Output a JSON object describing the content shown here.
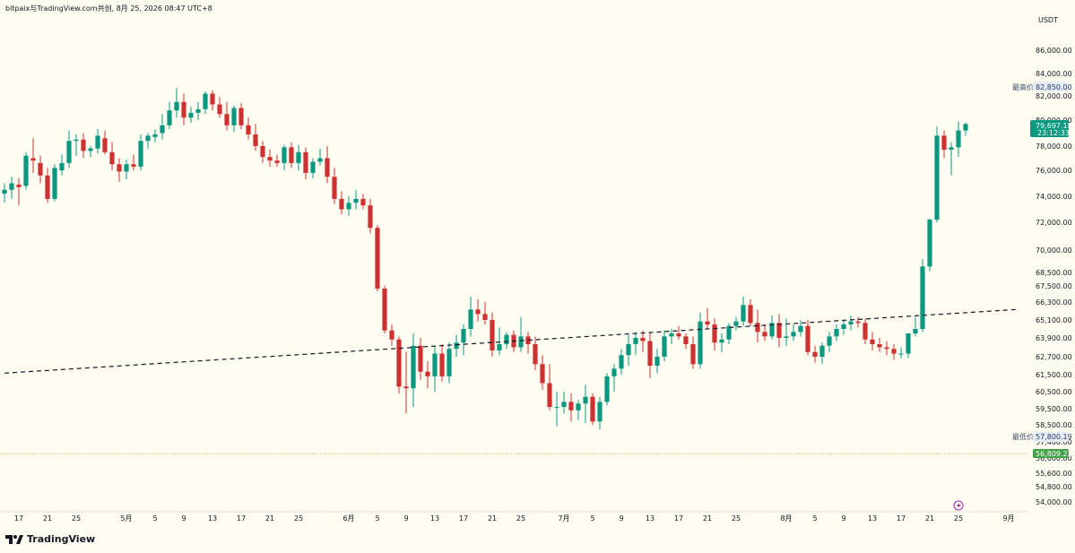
{
  "header": {
    "caption": "bitpaix与TradingView.com共创, 8月 25, 2026 08:47 UTC+8"
  },
  "price_axis": {
    "currency": "USDT"
  },
  "price_labels": {
    "high_label": "最高价",
    "high_value": "82,850.00",
    "low_label": "最低价",
    "low_value": "57,800.19",
    "current_price": "79,697.18",
    "countdown": "23:12:33",
    "alert_line": "56,809.22"
  },
  "logo": {
    "text": "TradingView"
  },
  "colors": {
    "up": "#089981",
    "down": "#d03030",
    "bg": "#fffdf2",
    "alert": "#43a047",
    "high_low_bg": "#e6ecf6"
  },
  "chart_data": {
    "type": "candlestick",
    "y_ticks": [
      {
        "v": 86000,
        "label": "86,000.00"
      },
      {
        "v": 84000,
        "label": "84,000.00"
      },
      {
        "v": 82000,
        "label": "82,000.00"
      },
      {
        "v": 80000,
        "label": "80,000.00"
      },
      {
        "v": 78000,
        "label": "78,000.00"
      },
      {
        "v": 76000,
        "label": "76,000.00"
      },
      {
        "v": 74000,
        "label": "74,000.00"
      },
      {
        "v": 72000,
        "label": "72,000.00"
      },
      {
        "v": 70000,
        "label": "70,000.00"
      },
      {
        "v": 68500,
        "label": "68,500.00"
      },
      {
        "v": 67500,
        "label": "67,500.00"
      },
      {
        "v": 66300,
        "label": "66,300.00"
      },
      {
        "v": 65100,
        "label": "65,100.00"
      },
      {
        "v": 63900,
        "label": "63,900.00"
      },
      {
        "v": 62700,
        "label": "62,700.00"
      },
      {
        "v": 61500,
        "label": "61,500.00"
      },
      {
        "v": 60500,
        "label": "60,500.00"
      },
      {
        "v": 59500,
        "label": "59,500.00"
      },
      {
        "v": 58500,
        "label": "58,500.00"
      },
      {
        "v": 57400,
        "label": "57,400.00"
      },
      {
        "v": 56600,
        "label": "56,600.00"
      },
      {
        "v": 55600,
        "label": "55,600.00"
      },
      {
        "v": 54800,
        "label": "54,800.00"
      },
      {
        "v": 54000,
        "label": "54,000.00"
      }
    ],
    "x_ticks": [
      "17",
      "21",
      "25",
      "5月",
      "5",
      "9",
      "13",
      "17",
      "21",
      "25",
      "6月",
      "5",
      "9",
      "13",
      "17",
      "21",
      "25",
      "7月",
      "5",
      "9",
      "13",
      "17",
      "21",
      "25",
      "8月",
      "5",
      "9",
      "13",
      "17",
      "21",
      "25",
      "9月"
    ],
    "x_tick_days": [
      -15,
      -11,
      -7,
      0,
      4,
      8,
      12,
      16,
      20,
      24,
      31,
      35,
      39,
      43,
      47,
      51,
      55,
      61,
      65,
      69,
      73,
      77,
      81,
      85,
      92,
      96,
      100,
      104,
      108,
      112,
      116,
      123
    ],
    "trendline": [
      {
        "day": -17,
        "price": 61600
      },
      {
        "day": 124,
        "price": 65800
      }
    ],
    "candles": [
      {
        "d": -17,
        "o": 74200,
        "h": 75000,
        "l": 73500,
        "c": 74500
      },
      {
        "d": -16,
        "o": 74500,
        "h": 75500,
        "l": 73800,
        "c": 75000
      },
      {
        "d": -15,
        "o": 74900,
        "h": 75400,
        "l": 73300,
        "c": 74700
      },
      {
        "d": -14,
        "o": 74800,
        "h": 77500,
        "l": 74500,
        "c": 77200
      },
      {
        "d": -13,
        "o": 77000,
        "h": 78600,
        "l": 75800,
        "c": 76800
      },
      {
        "d": -12,
        "o": 76600,
        "h": 77200,
        "l": 75000,
        "c": 75600
      },
      {
        "d": -11,
        "o": 75600,
        "h": 76200,
        "l": 73500,
        "c": 73800
      },
      {
        "d": -10,
        "o": 73800,
        "h": 76500,
        "l": 73600,
        "c": 76200
      },
      {
        "d": -9,
        "o": 76000,
        "h": 77300,
        "l": 75600,
        "c": 76600
      },
      {
        "d": -8,
        "o": 76600,
        "h": 79200,
        "l": 76200,
        "c": 78400
      },
      {
        "d": -7,
        "o": 78400,
        "h": 78900,
        "l": 77200,
        "c": 78500
      },
      {
        "d": -6,
        "o": 78500,
        "h": 79000,
        "l": 77000,
        "c": 77600
      },
      {
        "d": -5,
        "o": 77600,
        "h": 78000,
        "l": 77100,
        "c": 77800
      },
      {
        "d": -4,
        "o": 77800,
        "h": 79300,
        "l": 77400,
        "c": 78800
      },
      {
        "d": -3,
        "o": 78600,
        "h": 79200,
        "l": 77300,
        "c": 77500
      },
      {
        "d": -2,
        "o": 77500,
        "h": 78300,
        "l": 76000,
        "c": 76500
      },
      {
        "d": -1,
        "o": 76500,
        "h": 77000,
        "l": 75100,
        "c": 75900
      },
      {
        "d": 0,
        "o": 75900,
        "h": 76900,
        "l": 75300,
        "c": 76500
      },
      {
        "d": 1,
        "o": 76500,
        "h": 77300,
        "l": 76000,
        "c": 76300
      },
      {
        "d": 2,
        "o": 76300,
        "h": 78900,
        "l": 76000,
        "c": 78400
      },
      {
        "d": 3,
        "o": 78400,
        "h": 79000,
        "l": 77800,
        "c": 78800
      },
      {
        "d": 4,
        "o": 78700,
        "h": 79300,
        "l": 78300,
        "c": 78900
      },
      {
        "d": 5,
        "o": 79000,
        "h": 80500,
        "l": 78500,
        "c": 79600
      },
      {
        "d": 6,
        "o": 79600,
        "h": 81500,
        "l": 79300,
        "c": 80800
      },
      {
        "d": 7,
        "o": 80800,
        "h": 82700,
        "l": 80200,
        "c": 81500
      },
      {
        "d": 8,
        "o": 81500,
        "h": 82200,
        "l": 79600,
        "c": 80200
      },
      {
        "d": 9,
        "o": 80200,
        "h": 81100,
        "l": 79800,
        "c": 80600
      },
      {
        "d": 10,
        "o": 80600,
        "h": 81500,
        "l": 80000,
        "c": 80900
      },
      {
        "d": 11,
        "o": 80900,
        "h": 82400,
        "l": 80500,
        "c": 82200
      },
      {
        "d": 12,
        "o": 82200,
        "h": 82500,
        "l": 80800,
        "c": 81300
      },
      {
        "d": 13,
        "o": 81300,
        "h": 81900,
        "l": 80200,
        "c": 80500
      },
      {
        "d": 14,
        "o": 80500,
        "h": 81500,
        "l": 79200,
        "c": 79600
      },
      {
        "d": 15,
        "o": 79600,
        "h": 81200,
        "l": 79100,
        "c": 81000
      },
      {
        "d": 16,
        "o": 81000,
        "h": 81400,
        "l": 79300,
        "c": 79600
      },
      {
        "d": 17,
        "o": 79600,
        "h": 80200,
        "l": 78500,
        "c": 78900
      },
      {
        "d": 18,
        "o": 78900,
        "h": 79700,
        "l": 77600,
        "c": 78000
      },
      {
        "d": 19,
        "o": 78000,
        "h": 78400,
        "l": 76600,
        "c": 77100
      },
      {
        "d": 20,
        "o": 77100,
        "h": 77700,
        "l": 76300,
        "c": 76800
      },
      {
        "d": 21,
        "o": 76800,
        "h": 77300,
        "l": 76300,
        "c": 76600
      },
      {
        "d": 22,
        "o": 76600,
        "h": 78100,
        "l": 76000,
        "c": 77900
      },
      {
        "d": 23,
        "o": 77900,
        "h": 78300,
        "l": 76200,
        "c": 76600
      },
      {
        "d": 24,
        "o": 76600,
        "h": 78100,
        "l": 76000,
        "c": 77500
      },
      {
        "d": 25,
        "o": 77500,
        "h": 77900,
        "l": 75300,
        "c": 75800
      },
      {
        "d": 26,
        "o": 75800,
        "h": 77000,
        "l": 75400,
        "c": 76700
      },
      {
        "d": 27,
        "o": 76700,
        "h": 77800,
        "l": 76400,
        "c": 77000
      },
      {
        "d": 28,
        "o": 77000,
        "h": 78000,
        "l": 75000,
        "c": 75500
      },
      {
        "d": 29,
        "o": 75500,
        "h": 76200,
        "l": 73400,
        "c": 73800
      },
      {
        "d": 30,
        "o": 73800,
        "h": 74400,
        "l": 72600,
        "c": 73000
      },
      {
        "d": 31,
        "o": 73000,
        "h": 74000,
        "l": 72500,
        "c": 73500
      },
      {
        "d": 32,
        "o": 73500,
        "h": 74500,
        "l": 73000,
        "c": 73800
      },
      {
        "d": 33,
        "o": 73800,
        "h": 74200,
        "l": 73000,
        "c": 73300
      },
      {
        "d": 34,
        "o": 73300,
        "h": 73800,
        "l": 71200,
        "c": 71600
      },
      {
        "d": 35,
        "o": 71600,
        "h": 71800,
        "l": 67100,
        "c": 67300
      },
      {
        "d": 36,
        "o": 67300,
        "h": 67500,
        "l": 64200,
        "c": 64400
      },
      {
        "d": 37,
        "o": 64400,
        "h": 64800,
        "l": 63400,
        "c": 63800
      },
      {
        "d": 38,
        "o": 63800,
        "h": 64000,
        "l": 60400,
        "c": 60800
      },
      {
        "d": 39,
        "o": 60800,
        "h": 63000,
        "l": 59200,
        "c": 60700
      },
      {
        "d": 40,
        "o": 60700,
        "h": 64200,
        "l": 59600,
        "c": 63400
      },
      {
        "d": 41,
        "o": 63400,
        "h": 63900,
        "l": 61200,
        "c": 61700
      },
      {
        "d": 42,
        "o": 61700,
        "h": 62400,
        "l": 60700,
        "c": 61400
      },
      {
        "d": 43,
        "o": 61400,
        "h": 63400,
        "l": 60500,
        "c": 62900
      },
      {
        "d": 44,
        "o": 62900,
        "h": 63500,
        "l": 61100,
        "c": 61400
      },
      {
        "d": 45,
        "o": 61400,
        "h": 63600,
        "l": 61000,
        "c": 63200
      },
      {
        "d": 46,
        "o": 63200,
        "h": 64100,
        "l": 62700,
        "c": 63600
      },
      {
        "d": 47,
        "o": 63600,
        "h": 64800,
        "l": 62800,
        "c": 64500
      },
      {
        "d": 48,
        "o": 64500,
        "h": 66700,
        "l": 64000,
        "c": 65800
      },
      {
        "d": 49,
        "o": 65800,
        "h": 66500,
        "l": 65000,
        "c": 65500
      },
      {
        "d": 50,
        "o": 65500,
        "h": 66300,
        "l": 64800,
        "c": 65100
      },
      {
        "d": 51,
        "o": 65100,
        "h": 65600,
        "l": 62700,
        "c": 63100
      },
      {
        "d": 52,
        "o": 63100,
        "h": 64600,
        "l": 62800,
        "c": 63500
      },
      {
        "d": 53,
        "o": 63500,
        "h": 64300,
        "l": 63200,
        "c": 64100
      },
      {
        "d": 54,
        "o": 64100,
        "h": 64400,
        "l": 63000,
        "c": 63300
      },
      {
        "d": 55,
        "o": 63300,
        "h": 65300,
        "l": 63000,
        "c": 64000
      },
      {
        "d": 56,
        "o": 64000,
        "h": 64300,
        "l": 62900,
        "c": 63500
      },
      {
        "d": 57,
        "o": 63500,
        "h": 64000,
        "l": 61800,
        "c": 62200
      },
      {
        "d": 58,
        "o": 62200,
        "h": 62800,
        "l": 60600,
        "c": 61000
      },
      {
        "d": 59,
        "o": 61000,
        "h": 62200,
        "l": 59400,
        "c": 59600
      },
      {
        "d": 60,
        "o": 59600,
        "h": 60500,
        "l": 58400,
        "c": 59600
      },
      {
        "d": 61,
        "o": 59600,
        "h": 60500,
        "l": 59200,
        "c": 59900
      },
      {
        "d": 62,
        "o": 59900,
        "h": 60400,
        "l": 58700,
        "c": 59400
      },
      {
        "d": 63,
        "o": 59400,
        "h": 60000,
        "l": 58800,
        "c": 59800
      },
      {
        "d": 64,
        "o": 59800,
        "h": 60900,
        "l": 58600,
        "c": 60200
      },
      {
        "d": 65,
        "o": 60200,
        "h": 60400,
        "l": 58500,
        "c": 58700
      },
      {
        "d": 66,
        "o": 58700,
        "h": 60200,
        "l": 58200,
        "c": 59900
      },
      {
        "d": 67,
        "o": 59900,
        "h": 61600,
        "l": 59700,
        "c": 61400
      },
      {
        "d": 68,
        "o": 61400,
        "h": 62200,
        "l": 60500,
        "c": 61900
      },
      {
        "d": 69,
        "o": 61900,
        "h": 63200,
        "l": 61500,
        "c": 62800
      },
      {
        "d": 70,
        "o": 62800,
        "h": 64100,
        "l": 62100,
        "c": 63500
      },
      {
        "d": 71,
        "o": 63500,
        "h": 64300,
        "l": 62800,
        "c": 63900
      },
      {
        "d": 72,
        "o": 63900,
        "h": 64400,
        "l": 63000,
        "c": 63700
      },
      {
        "d": 73,
        "o": 63700,
        "h": 64300,
        "l": 61300,
        "c": 62100
      },
      {
        "d": 74,
        "o": 62100,
        "h": 63200,
        "l": 61600,
        "c": 62700
      },
      {
        "d": 75,
        "o": 62700,
        "h": 64400,
        "l": 62400,
        "c": 64000
      },
      {
        "d": 76,
        "o": 64000,
        "h": 64500,
        "l": 63500,
        "c": 64200
      },
      {
        "d": 77,
        "o": 64200,
        "h": 64700,
        "l": 63800,
        "c": 64000
      },
      {
        "d": 78,
        "o": 64000,
        "h": 64200,
        "l": 63200,
        "c": 63500
      },
      {
        "d": 79,
        "o": 63500,
        "h": 64000,
        "l": 61900,
        "c": 62200
      },
      {
        "d": 80,
        "o": 62200,
        "h": 65600,
        "l": 61900,
        "c": 65000
      },
      {
        "d": 81,
        "o": 65000,
        "h": 65900,
        "l": 64500,
        "c": 64800
      },
      {
        "d": 82,
        "o": 64800,
        "h": 65200,
        "l": 63100,
        "c": 63600
      },
      {
        "d": 83,
        "o": 63600,
        "h": 64200,
        "l": 63000,
        "c": 63800
      },
      {
        "d": 84,
        "o": 63800,
        "h": 64900,
        "l": 63500,
        "c": 64700
      },
      {
        "d": 85,
        "o": 64700,
        "h": 65300,
        "l": 64400,
        "c": 65000
      },
      {
        "d": 86,
        "o": 65000,
        "h": 66700,
        "l": 64700,
        "c": 66100
      },
      {
        "d": 87,
        "o": 66100,
        "h": 66500,
        "l": 64700,
        "c": 64900
      },
      {
        "d": 88,
        "o": 64900,
        "h": 65800,
        "l": 63600,
        "c": 64300
      },
      {
        "d": 89,
        "o": 64300,
        "h": 64800,
        "l": 63700,
        "c": 64000
      },
      {
        "d": 90,
        "o": 64000,
        "h": 65400,
        "l": 63800,
        "c": 64900
      },
      {
        "d": 91,
        "o": 64900,
        "h": 65500,
        "l": 63300,
        "c": 63900
      },
      {
        "d": 92,
        "o": 63900,
        "h": 65200,
        "l": 63400,
        "c": 64000
      },
      {
        "d": 93,
        "o": 64000,
        "h": 64800,
        "l": 63700,
        "c": 64300
      },
      {
        "d": 94,
        "o": 64300,
        "h": 65100,
        "l": 64000,
        "c": 64700
      },
      {
        "d": 95,
        "o": 64700,
        "h": 65100,
        "l": 62800,
        "c": 63000
      },
      {
        "d": 96,
        "o": 63000,
        "h": 63400,
        "l": 62300,
        "c": 62700
      },
      {
        "d": 97,
        "o": 62700,
        "h": 63600,
        "l": 62200,
        "c": 63400
      },
      {
        "d": 98,
        "o": 63400,
        "h": 64300,
        "l": 63000,
        "c": 64000
      },
      {
        "d": 99,
        "o": 64000,
        "h": 64800,
        "l": 63700,
        "c": 64500
      },
      {
        "d": 100,
        "o": 64500,
        "h": 65100,
        "l": 64100,
        "c": 64800
      },
      {
        "d": 101,
        "o": 64800,
        "h": 65400,
        "l": 64400,
        "c": 65000
      },
      {
        "d": 102,
        "o": 65000,
        "h": 65300,
        "l": 64600,
        "c": 64900
      },
      {
        "d": 103,
        "o": 64900,
        "h": 65200,
        "l": 63500,
        "c": 63800
      },
      {
        "d": 104,
        "o": 63800,
        "h": 64300,
        "l": 63100,
        "c": 63500
      },
      {
        "d": 105,
        "o": 63500,
        "h": 63900,
        "l": 63000,
        "c": 63300
      },
      {
        "d": 106,
        "o": 63300,
        "h": 63700,
        "l": 62800,
        "c": 63200
      },
      {
        "d": 107,
        "o": 63200,
        "h": 63500,
        "l": 62500,
        "c": 62900
      },
      {
        "d": 108,
        "o": 62900,
        "h": 63300,
        "l": 62600,
        "c": 62900
      },
      {
        "d": 109,
        "o": 62900,
        "h": 64200,
        "l": 62600,
        "c": 64200
      },
      {
        "d": 110,
        "o": 64200,
        "h": 65300,
        "l": 64000,
        "c": 64500
      },
      {
        "d": 111,
        "o": 64500,
        "h": 69400,
        "l": 64300,
        "c": 68900
      },
      {
        "d": 112,
        "o": 68900,
        "h": 72300,
        "l": 68600,
        "c": 72200
      },
      {
        "d": 113,
        "o": 72200,
        "h": 79500,
        "l": 72000,
        "c": 78800
      },
      {
        "d": 114,
        "o": 78800,
        "h": 79200,
        "l": 77000,
        "c": 77700
      },
      {
        "d": 115,
        "o": 77700,
        "h": 78300,
        "l": 75600,
        "c": 77900
      },
      {
        "d": 116,
        "o": 77900,
        "h": 79900,
        "l": 77100,
        "c": 79200
      },
      {
        "d": 117,
        "o": 79200,
        "h": 79800,
        "l": 78800,
        "c": 79697
      }
    ]
  }
}
